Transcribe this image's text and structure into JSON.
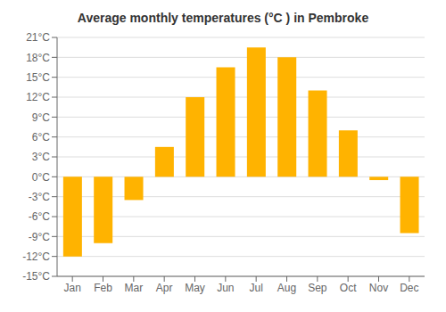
{
  "chart_data": {
    "type": "bar",
    "title": "Average monthly temperatures (°C ) in Pembroke",
    "categories": [
      "Jan",
      "Feb",
      "Mar",
      "Apr",
      "May",
      "Jun",
      "Jul",
      "Aug",
      "Sep",
      "Oct",
      "Nov",
      "Dec"
    ],
    "values": [
      -12,
      -10,
      -3.5,
      4.5,
      12,
      16.5,
      19.5,
      18,
      13,
      7,
      -0.5,
      -8.5
    ],
    "color": "#FFB300",
    "ylim": [
      -15,
      21
    ],
    "yticks": [
      {
        "value": -15,
        "label": "-15°C"
      },
      {
        "value": -12,
        "label": "-12°C"
      },
      {
        "value": -9,
        "label": "-9°C"
      },
      {
        "value": -6,
        "label": "-6°C"
      },
      {
        "value": -3,
        "label": "-3°C"
      },
      {
        "value": 0,
        "label": "0°C"
      },
      {
        "value": 3,
        "label": "3°C"
      },
      {
        "value": 6,
        "label": "6°C"
      },
      {
        "value": 9,
        "label": "9°C"
      },
      {
        "value": 12,
        "label": "12°C"
      },
      {
        "value": 15,
        "label": "15°C"
      },
      {
        "value": 18,
        "label": "18°C"
      },
      {
        "value": 21,
        "label": "21°C"
      }
    ],
    "grid": true
  }
}
